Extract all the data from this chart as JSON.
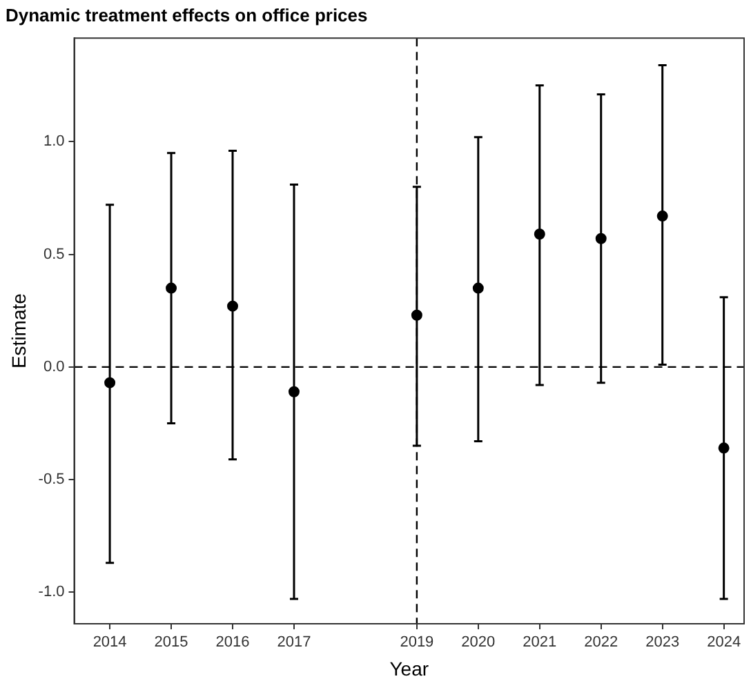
{
  "chart_data": {
    "type": "scatter",
    "title": "Dynamic treatment effects on office prices",
    "xlabel": "Year",
    "ylabel": "Estimate",
    "x": [
      2014,
      2015,
      2016,
      2017,
      2019,
      2020,
      2021,
      2022,
      2023,
      2024
    ],
    "values": [
      -0.07,
      0.35,
      0.27,
      -0.11,
      0.23,
      0.35,
      0.59,
      0.57,
      0.67,
      -0.36
    ],
    "errors": [
      [
        -0.87,
        0.72
      ],
      [
        -0.25,
        0.95
      ],
      [
        -0.41,
        0.96
      ],
      [
        -1.03,
        0.81
      ],
      [
        -0.35,
        0.8
      ],
      [
        -0.33,
        1.02
      ],
      [
        -0.08,
        1.25
      ],
      [
        -0.07,
        1.21
      ],
      [
        0.01,
        1.34
      ],
      [
        -1.03,
        0.31
      ]
    ],
    "color": "#000000",
    "marker": "circle",
    "xlim": [
      2013.42,
      2024.33
    ],
    "xticks": [
      2014,
      2015,
      2016,
      2017,
      2019,
      2020,
      2021,
      2022,
      2023,
      2024
    ],
    "ylim": [
      -1.14,
      1.46
    ],
    "yticks": [
      {
        "value": -1,
        "label": "-1.0"
      },
      {
        "value": -0.5,
        "label": "-0.5"
      },
      {
        "value": 0,
        "label": "0.0"
      },
      {
        "value": 0.5,
        "label": "0.5"
      },
      {
        "value": 1,
        "label": "1.0"
      }
    ],
    "ref_lines": [
      {
        "axis": "y",
        "value": 0,
        "color": "#000000",
        "line_style": "dashed"
      },
      {
        "axis": "x",
        "value": 2019,
        "color": "#000000",
        "line_style": "dashed"
      }
    ],
    "grid": false,
    "legend": false
  }
}
